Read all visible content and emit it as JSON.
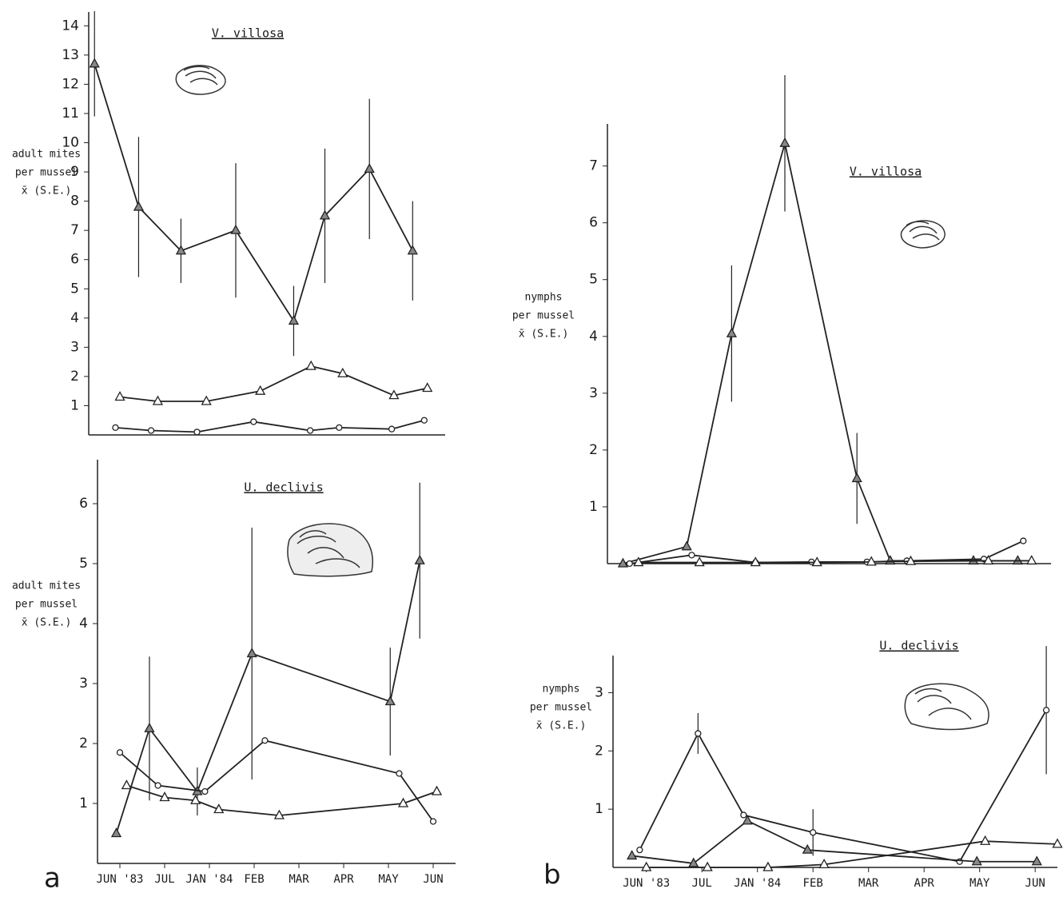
{
  "panel_labels": [
    "a",
    "b"
  ],
  "chart_data": [
    {
      "type": "line",
      "title": "V. villosa",
      "ylabel": [
        "adult mites",
        "per mussel",
        "x̄ (S.E.)"
      ],
      "xlim": [
        -0.7,
        7.3
      ],
      "ylim": [
        0,
        14.2
      ],
      "yticks": [
        1,
        2,
        3,
        4,
        5,
        6,
        7,
        8,
        9,
        10,
        11,
        12,
        13,
        14
      ],
      "series": [
        {
          "marker": "filled-triangle",
          "color": "#222222",
          "x": [
            -0.57,
            0.42,
            1.37,
            2.6,
            3.9,
            4.6,
            5.6,
            6.57
          ],
          "values": [
            12.7,
            7.8,
            6.3,
            7.0,
            3.9,
            7.5,
            9.1,
            6.3
          ],
          "errors": [
            1.8,
            2.4,
            1.1,
            2.3,
            1.2,
            2.3,
            2.4,
            1.7
          ]
        },
        {
          "marker": "open-triangle",
          "color": "#222222",
          "x": [
            0,
            0.85,
            1.94,
            3.15,
            4.29,
            5,
            6.15,
            6.9
          ],
          "values": [
            1.3,
            1.15,
            1.15,
            1.5,
            2.35,
            2.1,
            1.35,
            1.6
          ]
        },
        {
          "marker": "circle",
          "color": "#222222",
          "x": [
            -0.1,
            0.7,
            1.73,
            3,
            4.27,
            4.92,
            6.1,
            6.83
          ],
          "values": [
            0.25,
            0.15,
            0.1,
            0.45,
            0.15,
            0.25,
            0.2,
            0.5
          ]
        }
      ]
    },
    {
      "type": "line",
      "title": "U. declivis",
      "ylabel": [
        "adult mites",
        "per mussel",
        "x̄ (S.E.)"
      ],
      "xlim": [
        -0.5,
        7.5
      ],
      "ylim": [
        0,
        6.6
      ],
      "yticks": [
        1,
        2,
        3,
        4,
        5,
        6
      ],
      "xticks": [
        {
          "value": 0,
          "label": "JUN '83"
        },
        {
          "value": 1,
          "label": "JUL"
        },
        {
          "value": 2,
          "label": "JAN '84"
        },
        {
          "value": 3,
          "label": "FEB"
        },
        {
          "value": 4,
          "label": "MAR"
        },
        {
          "value": 5,
          "label": "APR"
        },
        {
          "value": 6,
          "label": "MAY"
        },
        {
          "value": 7,
          "label": "JUN"
        }
      ],
      "series": [
        {
          "marker": "filled-triangle",
          "color": "#222222",
          "x": [
            -0.08,
            0.66,
            1.73,
            2.95,
            6.04,
            6.7
          ],
          "values": [
            0.5,
            2.25,
            1.2,
            3.5,
            2.7,
            5.05
          ],
          "errors": [
            null,
            1.2,
            0.4,
            2.1,
            0.9,
            1.3
          ]
        },
        {
          "marker": "circle",
          "color": "#222222",
          "x": [
            0,
            0.85,
            1.9,
            3.24,
            6.24,
            7
          ],
          "values": [
            1.85,
            1.3,
            1.2,
            2.05,
            1.5,
            0.7
          ]
        },
        {
          "marker": "open-triangle",
          "color": "#222222",
          "x": [
            0.15,
            1,
            1.69,
            2.21,
            3.56,
            6.33,
            7.08
          ],
          "values": [
            1.3,
            1.1,
            1.05,
            0.9,
            0.8,
            1.0,
            1.2
          ]
        }
      ]
    },
    {
      "type": "line",
      "title": "V. villosa",
      "ylabel": [
        "nymphs",
        "per mussel",
        "x̄ (S.E.)"
      ],
      "xlim": [
        -0.7,
        7.3
      ],
      "ylim": [
        0,
        7.6
      ],
      "yticks": [
        1,
        2,
        3,
        4,
        5,
        6,
        7
      ],
      "series": [
        {
          "marker": "filled-triangle",
          "color": "#222222",
          "x": [
            -0.42,
            0.73,
            1.54,
            2.5,
            3.8,
            4.4,
            5.9,
            6.7
          ],
          "values": [
            0,
            0.3,
            4.05,
            7.4,
            1.5,
            0.05,
            0.05,
            0.05
          ],
          "errors": [
            null,
            null,
            1.2,
            1.2,
            0.8,
            null,
            null,
            null
          ]
        },
        {
          "marker": "circle",
          "color": "#222222",
          "x": [
            -0.3,
            0.82,
            1.97,
            2.98,
            3.98,
            4.7,
            6.09,
            6.8
          ],
          "values": [
            0,
            0.15,
            0.02,
            0.03,
            0.03,
            0.05,
            0.08,
            0.4
          ]
        },
        {
          "marker": "open-triangle",
          "color": "#222222",
          "x": [
            -0.14,
            0.96,
            1.97,
            3.08,
            4.06,
            4.77,
            6.17,
            6.95
          ],
          "values": [
            0.02,
            0.02,
            0.02,
            0.02,
            0.03,
            0.04,
            0.05,
            0.05
          ]
        }
      ]
    },
    {
      "type": "line",
      "title": "U. declivis",
      "ylabel": [
        "nymphs",
        "per mussel",
        "x̄ (S.E.)"
      ],
      "xlim": [
        -0.6,
        7.4
      ],
      "ylim": [
        0,
        3.5
      ],
      "yticks": [
        1,
        2,
        3
      ],
      "xticks": [
        {
          "value": 0,
          "label": "JUN '83"
        },
        {
          "value": 1,
          "label": "JUL"
        },
        {
          "value": 2,
          "label": "JAN '84"
        },
        {
          "value": 3,
          "label": "FEB"
        },
        {
          "value": 4,
          "label": "MAR"
        },
        {
          "value": 5,
          "label": "APR"
        },
        {
          "value": 6,
          "label": "MAY"
        },
        {
          "value": 7,
          "label": "JUN"
        }
      ],
      "series": [
        {
          "marker": "circle",
          "color": "#222222",
          "x": [
            -0.12,
            0.93,
            1.75,
            3,
            5.64,
            7.2
          ],
          "values": [
            0.3,
            2.3,
            0.9,
            0.6,
            0.1,
            2.7
          ],
          "errors": [
            null,
            0.35,
            null,
            0.4,
            null,
            1.1
          ]
        },
        {
          "marker": "filled-triangle",
          "color": "#222222",
          "x": [
            -0.26,
            0.85,
            1.82,
            2.9,
            5.95,
            7.03
          ],
          "values": [
            0.2,
            0.07,
            0.8,
            0.3,
            0.1,
            0.1
          ]
        },
        {
          "marker": "open-triangle",
          "color": "#222222",
          "x": [
            0,
            1.1,
            2.19,
            3.2,
            6.1,
            7.4
          ],
          "values": [
            0,
            0,
            0,
            0.05,
            0.45,
            0.4
          ]
        }
      ]
    }
  ]
}
